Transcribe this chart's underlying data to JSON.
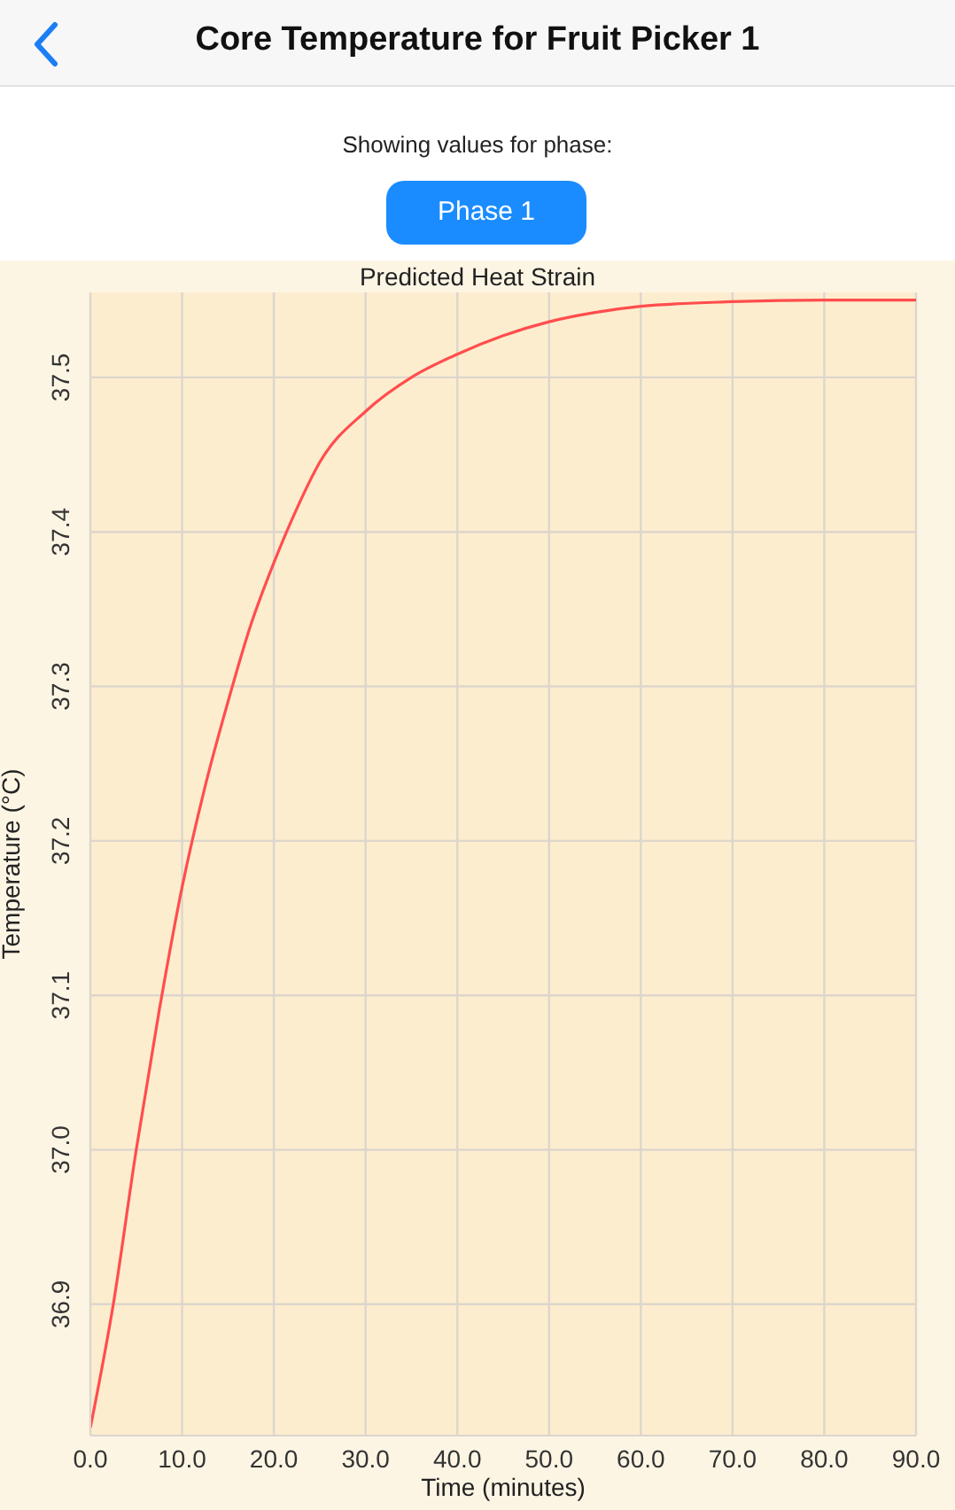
{
  "chart_data": {
    "type": "line",
    "title": "Predicted Heat Strain",
    "xlabel": "Time (minutes)",
    "ylabel": "Temperature (°C)",
    "annotations": [
      "Core Temperature for Fruit Picker 1",
      "Showing values for phase:",
      "Phase 1"
    ],
    "x": [
      0,
      2.5,
      5,
      7.5,
      10,
      12.5,
      15,
      17.5,
      20,
      22.5,
      25,
      30,
      35,
      40,
      45,
      50,
      55,
      60,
      70,
      80,
      90
    ],
    "series": [
      {
        "color": "#ff4d4d",
        "values": [
          36.82,
          36.9,
          37.0,
          37.09,
          37.17,
          37.235,
          37.29,
          37.34,
          37.38,
          37.415,
          37.445,
          37.478,
          37.5,
          37.515,
          37.527,
          37.536,
          37.542,
          37.546,
          37.549,
          37.55,
          37.55
        ]
      }
    ],
    "xlim": [
      0,
      90
    ],
    "xticks": [
      {
        "value": 0,
        "label": "0.0"
      },
      {
        "value": 10,
        "label": "10.0"
      },
      {
        "value": 20,
        "label": "20.0"
      },
      {
        "value": 30,
        "label": "30.0"
      },
      {
        "value": 40,
        "label": "40.0"
      },
      {
        "value": 50,
        "label": "50.0"
      },
      {
        "value": 60,
        "label": "60.0"
      },
      {
        "value": 70,
        "label": "70.0"
      },
      {
        "value": 80,
        "label": "80.0"
      },
      {
        "value": 90,
        "label": "90.0"
      }
    ],
    "ylim": [
      36.815,
      37.555
    ],
    "yticks": [
      36.9,
      {
        "value": 37,
        "label": "37.0"
      },
      37.1,
      37.2,
      37.3,
      37.4,
      37.5
    ],
    "grid": true,
    "legend": false,
    "marker": "none",
    "line_style": "solid"
  }
}
